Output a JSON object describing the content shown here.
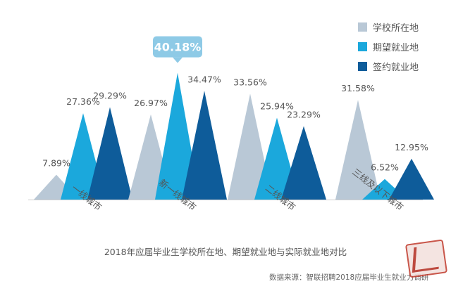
{
  "chart_data": {
    "type": "bar",
    "title": "",
    "caption": "2018年应届毕业生学校所在地、期望就业地与实际就业地对比",
    "source": "数据来源：智联招聘2018应届毕业生就业力调研",
    "categories": [
      "一线城市",
      "新一线城市",
      "二线城市",
      "三线及以下城市"
    ],
    "series": [
      {
        "name": "学校所在地",
        "color": "#b9c8d6",
        "values": [
          7.89,
          26.97,
          33.56,
          31.58
        ],
        "labels": [
          "7.89%",
          "26.97%",
          "33.56%",
          "31.58%"
        ]
      },
      {
        "name": "期望就业地",
        "color": "#1ba8dc",
        "values": [
          27.36,
          40.18,
          25.94,
          6.52
        ],
        "labels": [
          "27.36%",
          "40.18%",
          "25.94%",
          "6.52%"
        ]
      },
      {
        "name": "签约就业地",
        "color": "#0e5c9a",
        "values": [
          29.29,
          34.47,
          23.29,
          12.95
        ],
        "labels": [
          "29.29%",
          "34.47%",
          "23.29%",
          "12.95%"
        ]
      }
    ],
    "highlight": {
      "series": 1,
      "category": 1,
      "label": "40.18%",
      "color": "#8ecae6"
    },
    "ylim": [
      0,
      45
    ],
    "grid": false,
    "legend": "top-right",
    "mark_shape": "triangle"
  },
  "stamp_icon": "red-seal-stamp"
}
